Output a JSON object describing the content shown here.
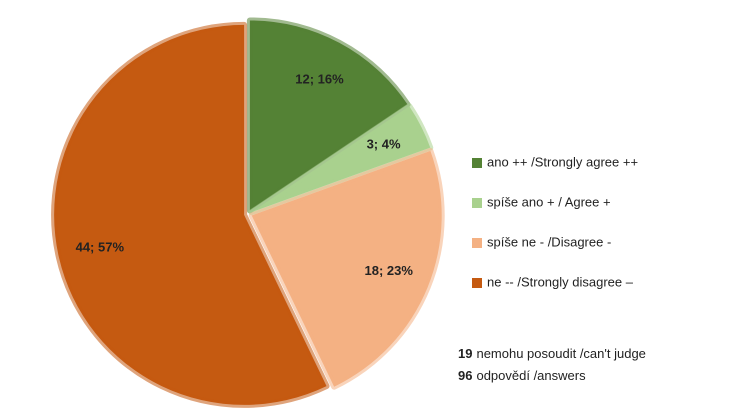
{
  "chart_data": {
    "type": "pie",
    "categories": [
      "ano ++ /Strongly agree ++",
      "spíše ano + / Agree +",
      "spíše ne - /Disagree -",
      "ne -- /Strongly disagree –"
    ],
    "values": [
      12,
      3,
      18,
      44
    ],
    "value_labels": [
      "12; 16%",
      "3; 4%",
      "18; 23%",
      "44; 57%"
    ],
    "colors": [
      "#548235",
      "#a9d18e",
      "#f4b183",
      "#c55a11"
    ],
    "legend": "right",
    "notes": [
      {
        "count": 19,
        "text": "nemohu posoudit /can't judge"
      },
      {
        "count": 96,
        "text": "odpovědí /answers"
      }
    ]
  }
}
